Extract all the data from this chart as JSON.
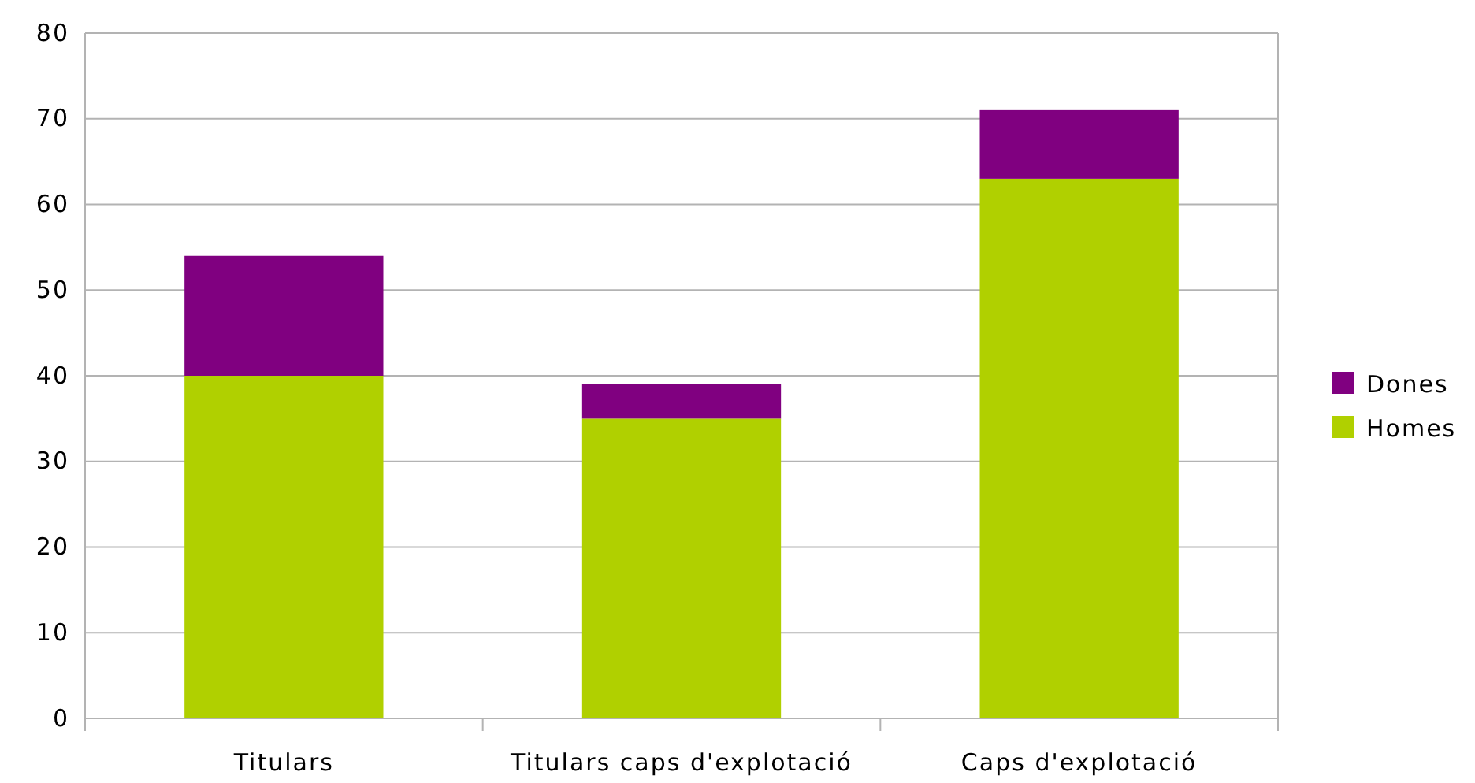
{
  "chart_data": {
    "type": "bar",
    "stacked": true,
    "categories": [
      "Titulars",
      "Titulars caps d'explotació",
      "Caps d'explotació"
    ],
    "series": [
      {
        "name": "Homes",
        "color": "#b0d000",
        "values": [
          40,
          35,
          63
        ]
      },
      {
        "name": "Dones",
        "color": "#800080",
        "values": [
          14,
          4,
          8
        ]
      }
    ],
    "ylim": [
      0,
      80
    ],
    "yticks": [
      0,
      10,
      20,
      30,
      40,
      50,
      60,
      70,
      80
    ],
    "grid": "y",
    "legend": "right"
  }
}
